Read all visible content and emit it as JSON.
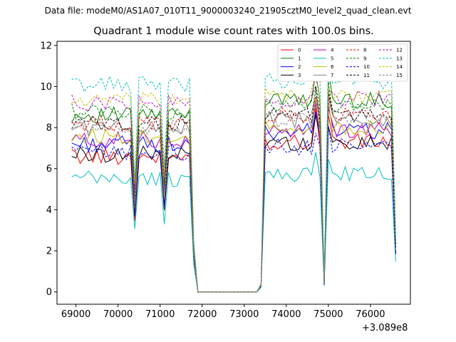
{
  "figure": {
    "suptitle": "Data file: modeM0/AS1A07_010T11_9000003240_21905cztM0_level2_quad_clean.evt",
    "title": "Quadrant 1 module wise count rates with 100.0s bins.",
    "x_offset_label": "+3.089e8"
  },
  "chart_data": {
    "type": "line",
    "title": "Quadrant 1 module wise count rates with 100.0s bins.",
    "xlabel": "",
    "ylabel": "",
    "x_offset": 308900000,
    "xlim": [
      68550,
      76950
    ],
    "ylim": [
      -0.6,
      12.2
    ],
    "xticks": [
      69000,
      70000,
      71000,
      72000,
      73000,
      74000,
      75000,
      76000
    ],
    "yticks": [
      0,
      2,
      4,
      6,
      8,
      10,
      12
    ],
    "xtick_labels": [
      "69000",
      "70000",
      "71000",
      "72000",
      "73000",
      "74000",
      "75000",
      "76000"
    ],
    "ytick_labels": [
      "0",
      "2",
      "4",
      "6",
      "8",
      "10",
      "12"
    ],
    "grid": false,
    "legend_position": "top-right",
    "legend_columns": 4,
    "time_segments": [
      [
        68900,
        69000,
        69100,
        69200,
        69300,
        69400,
        69500,
        69600,
        69700,
        69800,
        69900,
        70000,
        70100,
        70200,
        70300,
        70400,
        70500,
        70600,
        70700,
        70800,
        70900,
        71000,
        71100,
        71200,
        71300,
        71400,
        71500,
        71600,
        71700,
        71800,
        71900,
        72000,
        72100,
        72200,
        72300,
        72400,
        72500,
        72600,
        72700,
        72800,
        72900,
        73000,
        73100,
        73200,
        73300,
        73400,
        73500,
        73600,
        73700,
        73800,
        73900,
        74000,
        74100,
        74200,
        74300,
        74400,
        74500,
        74600,
        74700,
        74800,
        74900,
        75000,
        75100,
        75200,
        75300,
        75400,
        75500,
        75600,
        75700,
        75800,
        75900,
        76000,
        76100,
        76200,
        76300,
        76400,
        76500,
        76600
      ]
    ],
    "series": [
      {
        "name": "0",
        "color": "#ff0000",
        "dash": "solid",
        "base": 6.6,
        "peak": 8.2
      },
      {
        "name": "1",
        "color": "#008000",
        "dash": "solid",
        "base": 8.6,
        "peak": 10.2
      },
      {
        "name": "2",
        "color": "#0000ff",
        "dash": "solid",
        "base": 7.2,
        "peak": 8.6
      },
      {
        "name": "3",
        "color": "#000000",
        "dash": "solid",
        "base": 6.7,
        "peak": 7.9
      },
      {
        "name": "4",
        "color": "#bf00bf",
        "dash": "solid",
        "base": 7.4,
        "peak": 8.4
      },
      {
        "name": "5",
        "color": "#00bfbf",
        "dash": "solid",
        "base": 5.5,
        "peak": 6.0
      },
      {
        "name": "6",
        "color": "#bfbf00",
        "dash": "solid",
        "base": 7.6,
        "peak": 8.6
      },
      {
        "name": "7",
        "color": "#808080",
        "dash": "solid",
        "base": 8.0,
        "peak": 8.8
      },
      {
        "name": "8",
        "color": "#ff0000",
        "dash": "dashed",
        "base": 8.2,
        "peak": 9.0
      },
      {
        "name": "9",
        "color": "#008000",
        "dash": "dashed",
        "base": 8.8,
        "peak": 9.4
      },
      {
        "name": "10",
        "color": "#0000ff",
        "dash": "dashed",
        "base": 6.8,
        "peak": 7.4
      },
      {
        "name": "11",
        "color": "#000000",
        "dash": "dashed",
        "base": 8.2,
        "peak": 9.1
      },
      {
        "name": "12",
        "color": "#bf00bf",
        "dash": "dashed",
        "base": 9.2,
        "peak": 9.6
      },
      {
        "name": "13",
        "color": "#00bfbf",
        "dash": "dashed",
        "base": 10.1,
        "peak": 10.4
      },
      {
        "name": "14",
        "color": "#bfbf00",
        "dash": "dashed",
        "base": 9.3,
        "peak": 9.8
      },
      {
        "name": "15",
        "color": "#808080",
        "dash": "dashed",
        "base": 8.0,
        "peak": 8.9
      }
    ]
  }
}
